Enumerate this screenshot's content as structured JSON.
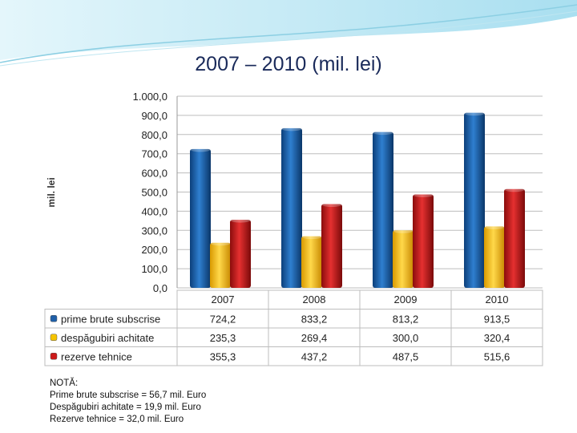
{
  "slide": {
    "title": "2007 – 2010 (mil. lei)",
    "note": {
      "heading": "NOTĂ:",
      "lines": [
        "Prime brute subscrise = 56,7 mil. Euro",
        "Despăgubiri achitate = 19,9 mil. Euro",
        "Rezerve tehnice = 32,0 mil. Euro"
      ]
    }
  },
  "chart_data": {
    "type": "bar",
    "title": "2007 – 2010 (mil. lei)",
    "ylabel": "mil. lei",
    "xlabel": "",
    "ylim": [
      0,
      1000
    ],
    "ytick_labels": [
      "0,0",
      "100,0",
      "200,0",
      "300,0",
      "400,0",
      "500,0",
      "600,0",
      "700,0",
      "800,0",
      "900,0",
      "1.000,0"
    ],
    "categories": [
      "2007",
      "2008",
      "2009",
      "2010"
    ],
    "grid": true,
    "legend": "data-table",
    "series": [
      {
        "name": "prime brute subscrise",
        "color": "#1f5fa8",
        "values": [
          724.2,
          833.2,
          813.2,
          913.5
        ],
        "labels": [
          "724,2",
          "833,2",
          "813,2",
          "913,5"
        ]
      },
      {
        "name": "despăgubiri achitate",
        "color": "#f5c400",
        "values": [
          235.3,
          269.4,
          300.0,
          320.4
        ],
        "labels": [
          "235,3",
          "269,4",
          "300,0",
          "320,4"
        ]
      },
      {
        "name": "rezerve tehnice",
        "color": "#cc1a1a",
        "values": [
          355.3,
          437.2,
          487.5,
          515.6
        ],
        "labels": [
          "355,3",
          "437,2",
          "487,5",
          "515,6"
        ]
      }
    ]
  }
}
